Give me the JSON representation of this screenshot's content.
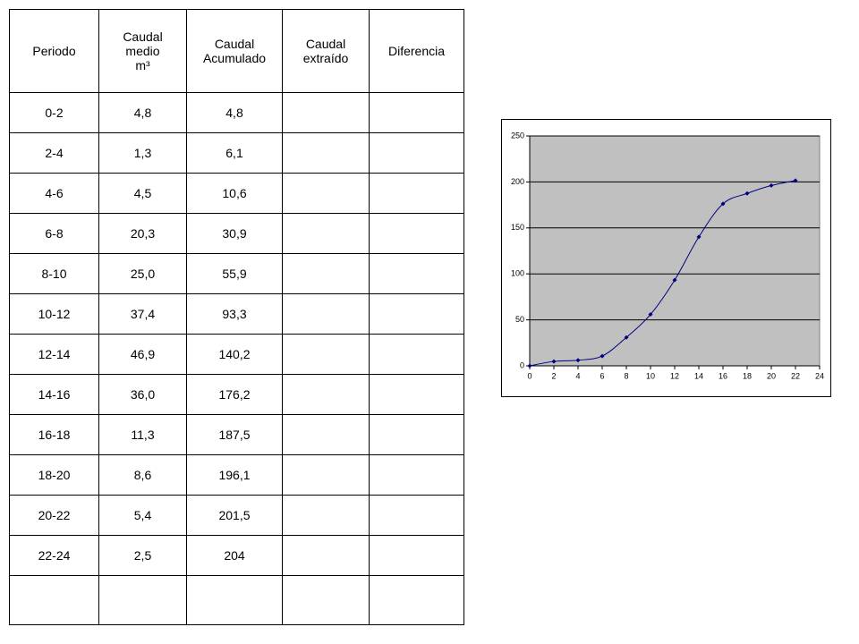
{
  "table": {
    "header": [
      [
        "Periodo"
      ],
      [
        "Caudal",
        "medio",
        "m³"
      ],
      [
        "Caudal",
        "Acumulado"
      ],
      [
        "Caudal",
        "extraído"
      ],
      [
        "Diferencia"
      ]
    ],
    "rows": [
      [
        "0-2",
        "4,8",
        "4,8"
      ],
      [
        "2-4",
        "1,3",
        "6,1"
      ],
      [
        "4-6",
        "4,5",
        "10,6"
      ],
      [
        "6-8",
        "20,3",
        "30,9"
      ],
      [
        "8-10",
        "25,0",
        "55,9"
      ],
      [
        "10-12",
        "37,4",
        "93,3"
      ],
      [
        "12-14",
        "46,9",
        "140,2"
      ],
      [
        "14-16",
        "36,0",
        "176,2"
      ],
      [
        "16-18",
        "11,3",
        "187,5"
      ],
      [
        "18-20",
        "8,6",
        "196,1"
      ],
      [
        "20-22",
        "5,4",
        "201,5"
      ],
      [
        "22-24",
        "2,5",
        "204"
      ]
    ]
  },
  "chart_data": {
    "type": "line",
    "x": [
      0,
      2,
      4,
      6,
      8,
      10,
      12,
      14,
      16,
      18,
      20,
      22
    ],
    "series": [
      {
        "color": "#000080",
        "values": [
          0,
          4.8,
          6.1,
          10.6,
          30.9,
          55.9,
          93.3,
          140.2,
          176.2,
          187.5,
          196.1,
          201.5
        ]
      }
    ],
    "xlim": [
      0,
      24
    ],
    "xticks": [
      0,
      2,
      4,
      6,
      8,
      10,
      12,
      14,
      16,
      18,
      20,
      22,
      24
    ],
    "ylim": [
      0,
      250
    ],
    "yticks": [
      0,
      50,
      100,
      150,
      200,
      250
    ],
    "grid": true
  }
}
